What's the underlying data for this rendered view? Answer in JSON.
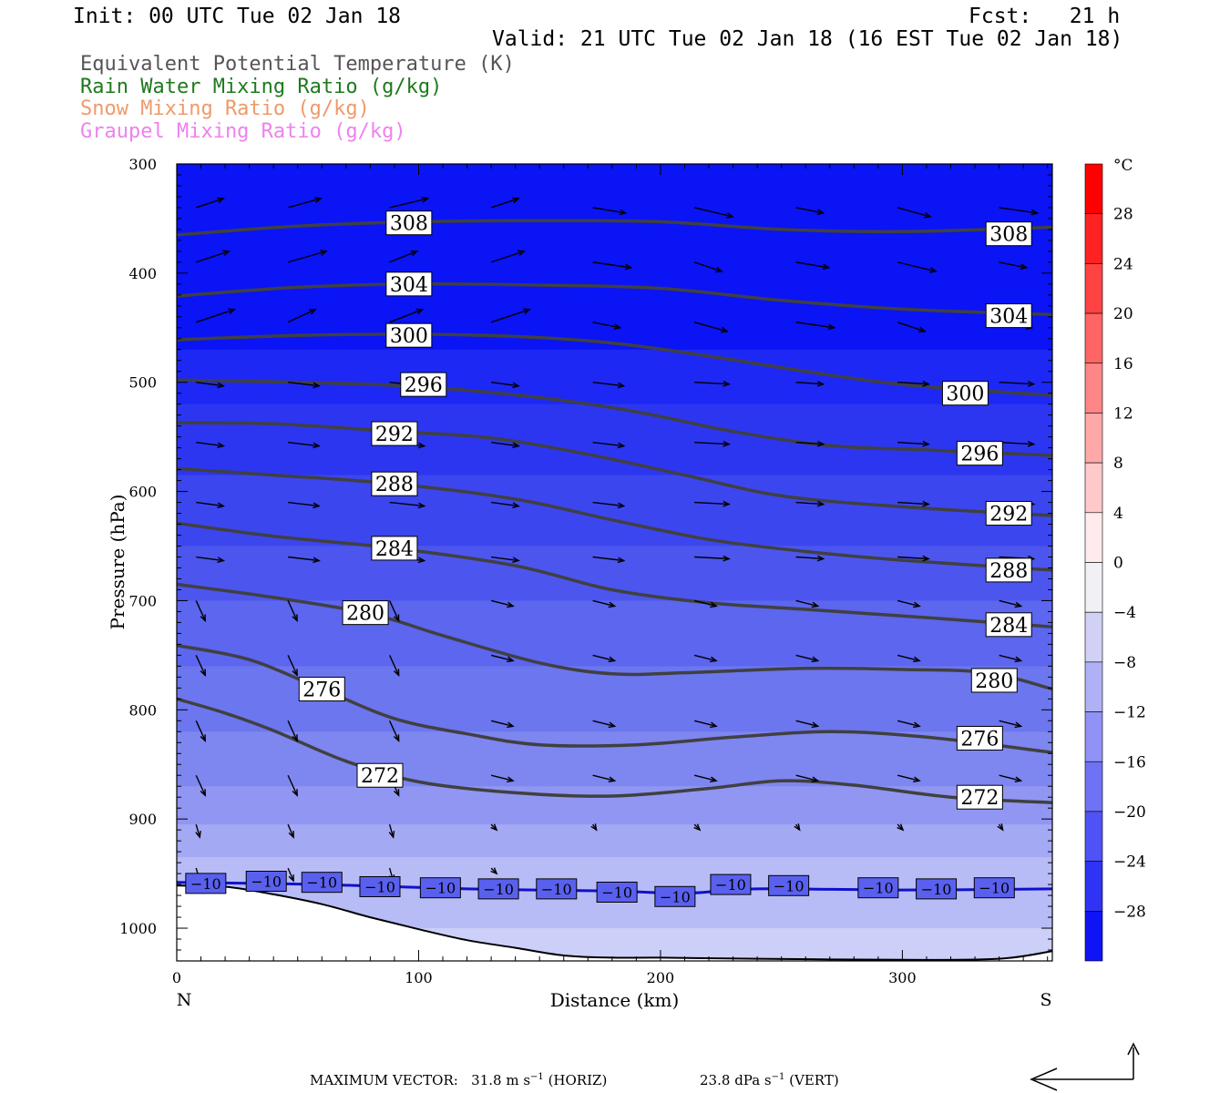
{
  "header": {
    "init": "Init: 00 UTC Tue 02 Jan 18",
    "fcst": "Fcst:   21 h",
    "valid": "Valid: 21 UTC Tue 02 Jan 18 (16 EST Tue 02 Jan 18)"
  },
  "fields": [
    {
      "label": "Equivalent Potential Temperature (K)",
      "color": "#555555"
    },
    {
      "label": "Rain Water Mixing Ratio (g/kg)",
      "color": "#1e7a1e"
    },
    {
      "label": "Snow Mixing Ratio (g/kg)",
      "color": "#ee9a6a"
    },
    {
      "label": "Graupel Mixing Ratio (g/kg)",
      "color": "#ee82ee"
    }
  ],
  "chart_data": {
    "type": "cross-section contour",
    "xlabel": "Distance (km)",
    "ylabel": "Pressure (hPa)",
    "xlim": [
      0,
      362
    ],
    "ylim": [
      1030,
      300
    ],
    "x_ticks": [
      0,
      100,
      200,
      300
    ],
    "y_ticks": [
      300,
      400,
      500,
      600,
      700,
      800,
      900,
      1000
    ],
    "left_end_label": "N",
    "right_end_label": "S",
    "theta_e_contours": [
      {
        "level": 308,
        "points": [
          [
            0,
            365
          ],
          [
            50,
            357
          ],
          [
            100,
            353
          ],
          [
            150,
            352
          ],
          [
            200,
            353
          ],
          [
            250,
            360
          ],
          [
            300,
            362
          ],
          [
            362,
            358
          ]
        ],
        "labels": [
          [
            96,
            354
          ],
          [
            344,
            364
          ]
        ]
      },
      {
        "level": 304,
        "points": [
          [
            0,
            421
          ],
          [
            50,
            413
          ],
          [
            100,
            410
          ],
          [
            150,
            411
          ],
          [
            200,
            414
          ],
          [
            250,
            425
          ],
          [
            300,
            433
          ],
          [
            362,
            438
          ]
        ],
        "labels": [
          [
            96,
            410
          ],
          [
            344,
            439
          ]
        ]
      },
      {
        "level": 300,
        "points": [
          [
            0,
            461
          ],
          [
            50,
            457
          ],
          [
            100,
            456
          ],
          [
            140,
            458
          ],
          [
            180,
            464
          ],
          [
            220,
            476
          ],
          [
            260,
            490
          ],
          [
            300,
            502
          ],
          [
            362,
            512
          ]
        ],
        "labels": [
          [
            96,
            457
          ],
          [
            326,
            510
          ]
        ]
      },
      {
        "level": 296,
        "points": [
          [
            0,
            498
          ],
          [
            50,
            500
          ],
          [
            100,
            504
          ],
          [
            150,
            514
          ],
          [
            190,
            527
          ],
          [
            230,
            545
          ],
          [
            270,
            558
          ],
          [
            310,
            562
          ],
          [
            362,
            567
          ]
        ],
        "labels": [
          [
            102,
            502
          ],
          [
            332,
            565
          ]
        ]
      },
      {
        "level": 292,
        "points": [
          [
            0,
            537
          ],
          [
            40,
            538
          ],
          [
            90,
            545
          ],
          [
            130,
            551
          ],
          [
            170,
            566
          ],
          [
            210,
            585
          ],
          [
            250,
            604
          ],
          [
            300,
            614
          ],
          [
            362,
            622
          ]
        ],
        "labels": [
          [
            90,
            547
          ],
          [
            344,
            620
          ]
        ]
      },
      {
        "level": 288,
        "points": [
          [
            0,
            579
          ],
          [
            40,
            585
          ],
          [
            90,
            593
          ],
          [
            140,
            607
          ],
          [
            180,
            626
          ],
          [
            220,
            644
          ],
          [
            260,
            655
          ],
          [
            300,
            663
          ],
          [
            362,
            672
          ]
        ],
        "labels": [
          [
            90,
            593
          ],
          [
            344,
            672
          ]
        ]
      },
      {
        "level": 284,
        "points": [
          [
            0,
            629
          ],
          [
            40,
            641
          ],
          [
            90,
            652
          ],
          [
            140,
            668
          ],
          [
            180,
            690
          ],
          [
            220,
            702
          ],
          [
            260,
            708
          ],
          [
            300,
            714
          ],
          [
            362,
            724
          ]
        ],
        "labels": [
          [
            90,
            652
          ],
          [
            344,
            722
          ]
        ]
      },
      {
        "level": 280,
        "points": [
          [
            0,
            685
          ],
          [
            40,
            697
          ],
          [
            80,
            712
          ],
          [
            110,
            732
          ],
          [
            150,
            757
          ],
          [
            180,
            767
          ],
          [
            210,
            766
          ],
          [
            260,
            762
          ],
          [
            300,
            763
          ],
          [
            335,
            766
          ],
          [
            362,
            781
          ]
        ],
        "labels": [
          [
            78,
            711
          ],
          [
            338,
            773
          ]
        ]
      },
      {
        "level": 276,
        "points": [
          [
            0,
            741
          ],
          [
            30,
            754
          ],
          [
            60,
            781
          ],
          [
            90,
            808
          ],
          [
            120,
            822
          ],
          [
            150,
            832
          ],
          [
            190,
            832
          ],
          [
            230,
            825
          ],
          [
            270,
            820
          ],
          [
            310,
            825
          ],
          [
            362,
            839
          ]
        ],
        "labels": [
          [
            60,
            781
          ],
          [
            332,
            826
          ]
        ]
      },
      {
        "level": 272,
        "points": [
          [
            0,
            790
          ],
          [
            20,
            803
          ],
          [
            40,
            819
          ],
          [
            70,
            847
          ],
          [
            100,
            866
          ],
          [
            140,
            876
          ],
          [
            180,
            879
          ],
          [
            220,
            872
          ],
          [
            250,
            865
          ],
          [
            280,
            869
          ],
          [
            320,
            880
          ],
          [
            362,
            885
          ]
        ],
        "labels": [
          [
            84,
            860
          ],
          [
            332,
            880
          ]
        ]
      }
    ],
    "temperature_contour": {
      "level": -10,
      "points": [
        [
          0,
          958
        ],
        [
          60,
          960
        ],
        [
          120,
          964
        ],
        [
          180,
          966
        ],
        [
          210,
          968
        ],
        [
          240,
          964
        ],
        [
          300,
          965
        ],
        [
          362,
          964
        ]
      ],
      "labels": [
        [
          12,
          959
        ],
        [
          37,
          957
        ],
        [
          60,
          958
        ],
        [
          84,
          962
        ],
        [
          109,
          963
        ],
        [
          133,
          964
        ],
        [
          157,
          964
        ],
        [
          182,
          967
        ],
        [
          206,
          971
        ],
        [
          229,
          960
        ],
        [
          253,
          961
        ],
        [
          290,
          963
        ],
        [
          314,
          964
        ],
        [
          338,
          963
        ]
      ]
    },
    "terrain": [
      [
        0,
        961
      ],
      [
        20,
        962
      ],
      [
        40,
        969
      ],
      [
        60,
        978
      ],
      [
        80,
        990
      ],
      [
        100,
        1001
      ],
      [
        120,
        1011
      ],
      [
        140,
        1018
      ],
      [
        160,
        1025
      ],
      [
        180,
        1027
      ],
      [
        200,
        1027
      ],
      [
        240,
        1028
      ],
      [
        300,
        1029
      ],
      [
        340,
        1028
      ],
      [
        362,
        1021
      ]
    ],
    "colorbar": {
      "unit": "°C",
      "labels": [
        28,
        24,
        20,
        16,
        12,
        8,
        4,
        0,
        -4,
        -8,
        -12,
        -16,
        -20,
        -24,
        -28
      ]
    },
    "max_vector_horiz": "31.8",
    "max_vector_vert": "23.8"
  },
  "footer": {
    "prefix": "MAXIMUM VECTOR:",
    "horiz_value": "31.8",
    "horiz_unit": "m s",
    "horiz_suffix": "(HORIZ)",
    "vert_value": "23.8",
    "vert_unit": "dPa s",
    "vert_suffix": "(VERT)",
    "exp": "−1"
  }
}
